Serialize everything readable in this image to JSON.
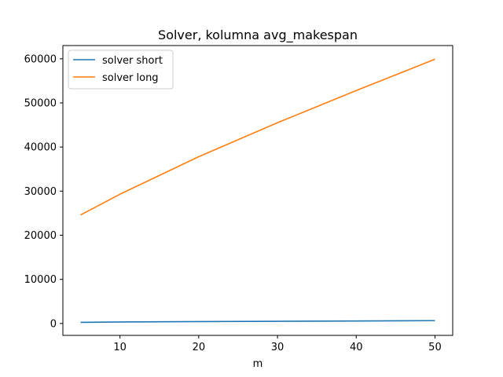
{
  "chart_data": {
    "type": "line",
    "title": "Solver, kolumna avg_makespan",
    "xlabel": "m",
    "ylabel": "",
    "x": [
      5,
      10,
      20,
      30,
      40,
      50
    ],
    "xlim": [
      2.75,
      52.25
    ],
    "ylim": [
      -2700,
      63000
    ],
    "xticks": [
      10,
      20,
      30,
      40,
      50
    ],
    "yticks": [
      0,
      10000,
      20000,
      30000,
      40000,
      50000,
      60000
    ],
    "grid": false,
    "legend_position": "top-left",
    "series": [
      {
        "name": "solver short",
        "color": "#1f77b4",
        "values": [
          250,
          330,
          420,
          490,
          560,
          640
        ]
      },
      {
        "name": "solver long",
        "color": "#ff7f0e",
        "values": [
          24600,
          29300,
          37800,
          45500,
          52800,
          59900
        ]
      }
    ]
  }
}
